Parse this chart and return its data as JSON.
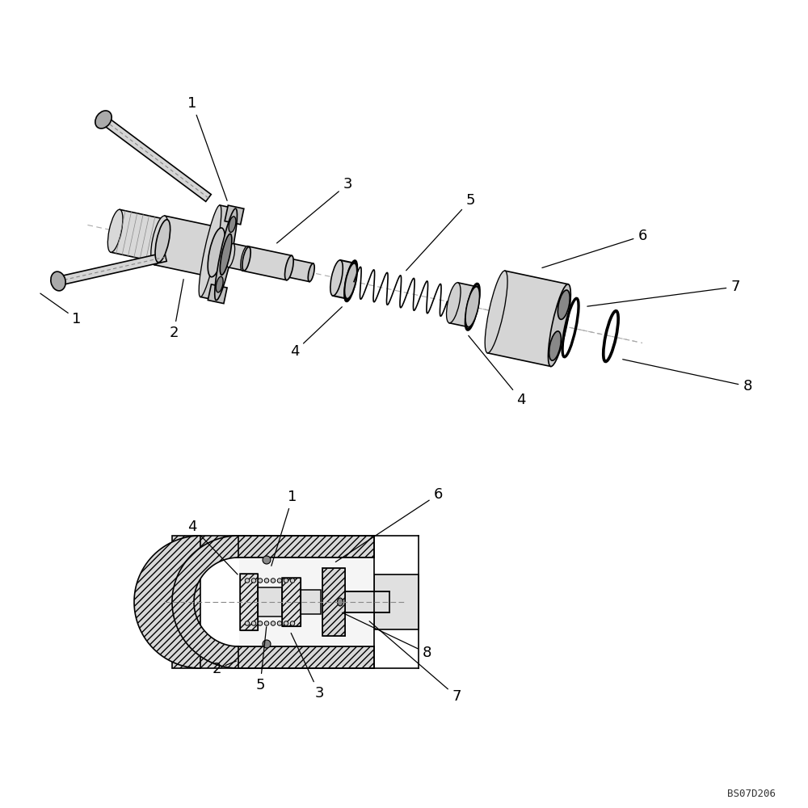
{
  "bg_color": "#ffffff",
  "line_color": "#000000",
  "label_fontsize": 13,
  "watermark": "BS07D206",
  "fig_width": 10,
  "fig_height": 10
}
